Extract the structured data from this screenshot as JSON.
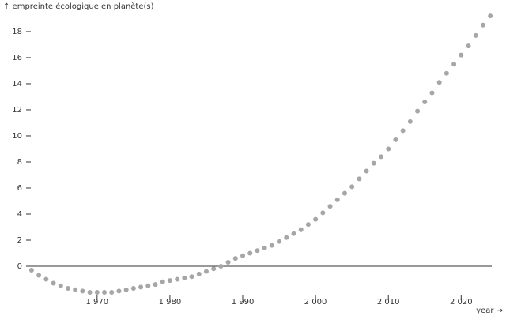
{
  "chart_data": {
    "type": "scatter",
    "y_label": "↑ empreinte écologique en planète(s)",
    "x_label": "year →",
    "x": [
      1961,
      1962,
      1963,
      1964,
      1965,
      1966,
      1967,
      1968,
      1969,
      1970,
      1971,
      1972,
      1973,
      1974,
      1975,
      1976,
      1977,
      1978,
      1979,
      1980,
      1981,
      1982,
      1983,
      1984,
      1985,
      1986,
      1987,
      1988,
      1989,
      1990,
      1991,
      1992,
      1993,
      1994,
      1995,
      1996,
      1997,
      1998,
      1999,
      2000,
      2001,
      2002,
      2003,
      2004,
      2005,
      2006,
      2007,
      2008,
      2009,
      2010,
      2011,
      2012,
      2013,
      2014,
      2015,
      2016,
      2017,
      2018,
      2019,
      2020,
      2021,
      2022,
      2023,
      2024
    ],
    "values": [
      -0.3,
      -0.7,
      -1.0,
      -1.3,
      -1.5,
      -1.7,
      -1.8,
      -1.9,
      -2.0,
      -2.0,
      -2.0,
      -2.0,
      -1.9,
      -1.8,
      -1.7,
      -1.6,
      -1.5,
      -1.4,
      -1.2,
      -1.1,
      -1.0,
      -0.9,
      -0.8,
      -0.6,
      -0.4,
      -0.2,
      0.0,
      0.3,
      0.6,
      0.8,
      1.0,
      1.2,
      1.4,
      1.6,
      1.9,
      2.2,
      2.5,
      2.8,
      3.2,
      3.6,
      4.1,
      4.6,
      5.1,
      5.6,
      6.1,
      6.7,
      7.3,
      7.9,
      8.4,
      9.0,
      9.7,
      10.4,
      11.1,
      11.9,
      12.6,
      13.3,
      14.1,
      14.8,
      15.5,
      16.2,
      16.9,
      17.7,
      18.5,
      19.2
    ],
    "color": "#a6a6a6",
    "xlim": [
      1960.9,
      2024.2
    ],
    "ylim": [
      -2.8,
      19.3
    ],
    "xticks": [
      {
        "value": 1970,
        "label": "1 970"
      },
      {
        "value": 1980,
        "label": "1 980"
      },
      {
        "value": 1990,
        "label": "1 990"
      },
      {
        "value": 2000,
        "label": "2 000"
      },
      {
        "value": 2010,
        "label": "2 010"
      },
      {
        "value": 2020,
        "label": "2 020"
      }
    ],
    "yticks": [
      0,
      2,
      4,
      6,
      8,
      10,
      12,
      14,
      16,
      18
    ],
    "zero_line": true
  }
}
